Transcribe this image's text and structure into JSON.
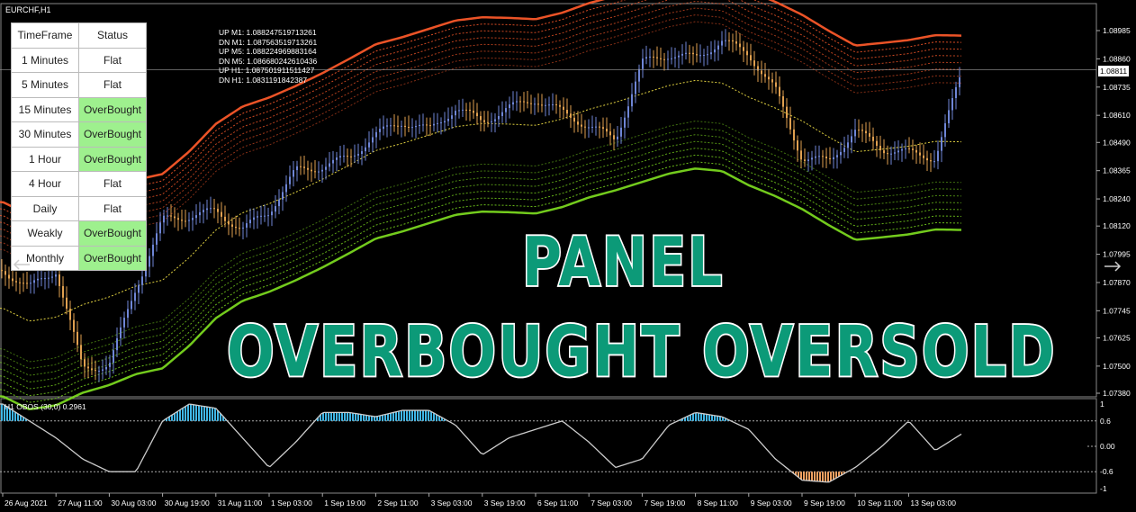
{
  "window": {
    "symbol_title": "EURCHF,H1"
  },
  "panel": {
    "headers": [
      "TimeFrame",
      "Status"
    ],
    "rows": [
      {
        "tf": "1 Minutes",
        "status": "Flat"
      },
      {
        "tf": "5 Minutes",
        "status": "Flat"
      },
      {
        "tf": "15 Minutes",
        "status": "OverBought"
      },
      {
        "tf": "30 Minutes",
        "status": "OverBought"
      },
      {
        "tf": "1 Hour",
        "status": "OverBought"
      },
      {
        "tf": "4 Hour",
        "status": "Flat"
      },
      {
        "tf": "Daily",
        "status": "Flat"
      },
      {
        "tf": "Weakly",
        "status": "OverBought"
      },
      {
        "tf": "Monthly",
        "status": "OverBought"
      }
    ]
  },
  "levels_text": [
    "UP M1: 1.088247519713261",
    "DN M1: 1.087563519713261",
    "UP M5: 1.088224969883164",
    "DN M5: 1.086680242610436",
    "UP H1: 1.087501911511427",
    "DN H1: 1.0831191842387"
  ],
  "overlay": {
    "line1": "PANEL",
    "line2": "OVERBOUGHT OVERSOLD"
  },
  "colors": {
    "overbought": "#9ef08e",
    "upper_band": "#ff5a2a",
    "lower_band": "#7ddc1f",
    "bull_candle": "#6f86d6",
    "bear_candle": "#e0a050",
    "osc_line": "#cccccc",
    "osc_ob_hist": "#3fb6e6",
    "osc_os_hist": "#f0a060",
    "overlay_text": "#0c9a78"
  },
  "icons": {
    "left_nav": "arrow-left-icon",
    "right_nav": "arrow-right-icon"
  },
  "chart_data": [
    {
      "type": "line",
      "title": "EURCHF,H1",
      "current_price": "1.08811",
      "yticks": [
        "1.08985",
        "1.08860",
        "1.08735",
        "1.08610",
        "1.08490",
        "1.08365",
        "1.08240",
        "1.08120",
        "1.07995",
        "1.07870",
        "1.07745",
        "1.07625",
        "1.07500",
        "1.07380"
      ],
      "ylim": [
        1.0738,
        1.08985
      ],
      "xticks": [
        "26 Aug 2021",
        "27 Aug 11:00",
        "30 Aug 03:00",
        "30 Aug 19:00",
        "31 Aug 11:00",
        "1 Sep 03:00",
        "1 Sep 19:00",
        "2 Sep 11:00",
        "3 Sep 03:00",
        "3 Sep 19:00",
        "6 Sep 11:00",
        "7 Sep 03:00",
        "7 Sep 19:00",
        "8 Sep 11:00",
        "9 Sep 03:00",
        "9 Sep 19:00",
        "10 Sep 11:00",
        "13 Sep 03:00"
      ],
      "x": [
        "26 Aug 19:00",
        "27 Aug 03:00",
        "27 Aug 11:00",
        "27 Aug 19:00",
        "30 Aug 03:00",
        "30 Aug 11:00",
        "30 Aug 19:00",
        "31 Aug 03:00",
        "31 Aug 11:00",
        "31 Aug 19:00",
        "1 Sep 03:00",
        "1 Sep 11:00",
        "1 Sep 19:00",
        "2 Sep 03:00",
        "2 Sep 11:00",
        "2 Sep 19:00",
        "3 Sep 03:00",
        "3 Sep 11:00",
        "3 Sep 19:00",
        "6 Sep 03:00",
        "6 Sep 11:00",
        "6 Sep 19:00",
        "7 Sep 03:00",
        "7 Sep 11:00",
        "7 Sep 19:00",
        "8 Sep 03:00",
        "8 Sep 11:00",
        "8 Sep 19:00",
        "9 Sep 03:00",
        "9 Sep 11:00",
        "9 Sep 19:00",
        "10 Sep 03:00",
        "10 Sep 11:00",
        "10 Sep 19:00",
        "13 Sep 03:00",
        "13 Sep 11:00",
        "13 Sep 19:00"
      ],
      "series": [
        {
          "values": [
            1.07926,
            1.07846,
            1.07926,
            1.07488,
            1.07507,
            1.07846,
            1.08145,
            1.08165,
            1.08185,
            1.08105,
            1.08185,
            1.08364,
            1.08384,
            1.08423,
            1.08523,
            1.08583,
            1.08543,
            1.08642,
            1.08583,
            1.08642,
            1.08682,
            1.08623,
            1.08563,
            1.08503,
            1.08842,
            1.08881,
            1.08862,
            1.08941,
            1.08881,
            1.08722,
            1.08423,
            1.08404,
            1.08543,
            1.08463,
            1.08443,
            1.08423,
            1.08802
          ]
        }
      ]
    },
    {
      "type": "line",
      "title": "H1 OBOS (30,0) 0.2961",
      "yticks": [
        "1",
        "0.6",
        "0.00",
        "-0.6",
        "-1"
      ],
      "ylim": [
        -1,
        1
      ],
      "levels": [
        0.6,
        -0.6
      ],
      "series": [
        {
          "values": [
            1.0,
            0.6,
            0.2,
            -0.3,
            -0.6,
            -0.6,
            0.6,
            1.0,
            0.9,
            0.2,
            -0.5,
            0.1,
            0.8,
            0.8,
            0.7,
            0.85,
            0.85,
            0.5,
            -0.2,
            0.2,
            0.4,
            0.6,
            0.1,
            -0.5,
            -0.3,
            0.5,
            0.8,
            0.7,
            0.4,
            -0.3,
            -0.8,
            -0.85,
            -0.5,
            0.0,
            0.6,
            -0.1,
            0.2961
          ]
        }
      ]
    }
  ]
}
